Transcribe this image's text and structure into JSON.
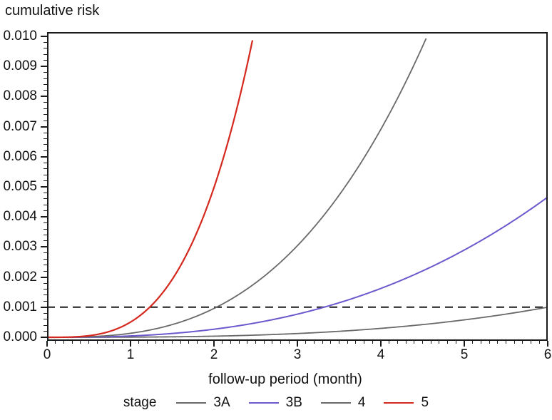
{
  "chart_data": {
    "type": "line",
    "y_axis_title": "cumulative risk",
    "x_axis_title": "follow-up period (month)",
    "x_range": [
      0,
      6
    ],
    "y_range": [
      0,
      0.01
    ],
    "x_tick_labels": [
      "0",
      "1",
      "2",
      "3",
      "4",
      "5",
      "6"
    ],
    "x_tick_values": [
      0,
      1,
      2,
      3,
      4,
      5,
      6
    ],
    "x_minor_tick_step": 0.1,
    "y_tick_labels": [
      "0.000",
      "0.001",
      "0.002",
      "0.003",
      "0.004",
      "0.005",
      "0.006",
      "0.007",
      "0.008",
      "0.009",
      "0.010"
    ],
    "y_tick_values": [
      0,
      0.001,
      0.002,
      0.003,
      0.004,
      0.005,
      0.006,
      0.007,
      0.008,
      0.009,
      0.01
    ],
    "y_minor_tick_step": 0.0002,
    "grid": "off",
    "axis_color": "#1a1a1a",
    "legend_position": "bottom",
    "legend_title": "stage",
    "reference_line": {
      "y": 0.001,
      "style": "dashed",
      "color": "#1a1a1a"
    },
    "series": [
      {
        "name": "3A",
        "color": "#696969",
        "stroke_width": 1.8,
        "model": {
          "type": "power",
          "exponent": 3.0,
          "month_at_risk_0_001": 6.0
        },
        "end_month": 6.0,
        "end_risk": 0.001,
        "points": {
          "month": [
            0,
            1,
            2,
            3,
            4,
            5,
            6
          ],
          "risk": [
            0,
            4.6e-06,
            3.7e-05,
            0.000125,
            0.000296,
            0.000579,
            0.001
          ]
        }
      },
      {
        "name": "3B",
        "color": "#6a5acd",
        "stroke_width": 2,
        "model": {
          "type": "power",
          "exponent": 2.6,
          "month_at_risk_0_001": 3.32
        },
        "end_month": 6.0,
        "end_risk": 0.00466,
        "points": {
          "month": [
            0,
            1,
            2,
            3,
            4,
            5,
            6
          ],
          "risk": [
            0,
            4.42e-05,
            0.000268,
            0.000768,
            0.001623,
            0.0029,
            0.00466
          ]
        }
      },
      {
        "name": "4",
        "color": "#696969",
        "stroke_width": 1.8,
        "model": {
          "type": "power",
          "exponent": 2.85,
          "month_at_risk_0_001": 2.03
        },
        "end_month": 4.55,
        "end_risk": 0.01,
        "points": {
          "month": [
            0,
            1,
            2,
            3,
            4,
            4.55
          ],
          "risk": [
            0,
            0.000133,
            0.000958,
            0.003044,
            0.00691,
            0.01
          ]
        }
      },
      {
        "name": "5",
        "color": "#d5281e",
        "stroke_width": 2.2,
        "model": {
          "type": "power",
          "exponent": 3.3,
          "month_at_risk_0_001": 1.23
        },
        "end_month": 2.47,
        "end_risk": 0.01,
        "points": {
          "month": [
            0,
            0.5,
            1,
            1.5,
            2,
            2.47
          ],
          "risk": [
            0,
            5.13e-05,
            0.000505,
            0.001923,
            0.004974,
            0.01
          ]
        }
      }
    ]
  }
}
